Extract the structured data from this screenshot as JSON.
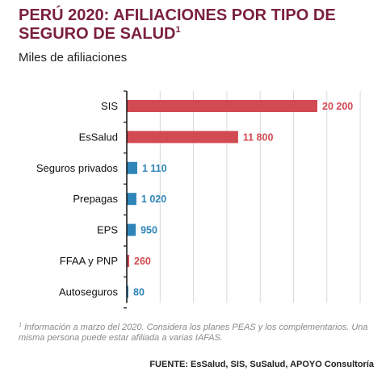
{
  "header": {
    "title": "PERÚ 2020: AFILIACIONES POR TIPO DE SEGURO DE SALUD",
    "title_note_marker": "1",
    "subtitle": "Miles de afiliaciones"
  },
  "chart_data": {
    "type": "bar",
    "orientation": "horizontal",
    "title": "PERÚ 2020: AFILIACIONES POR TIPO DE SEGURO DE SALUD",
    "subtitle": "Miles de afiliaciones",
    "categories": [
      "SIS",
      "EsSalud",
      "Seguros privados",
      "Prepagas",
      "EPS",
      "FFAA y PNP",
      "Autoseguros"
    ],
    "values": [
      20200,
      11800,
      1110,
      1020,
      950,
      260,
      80
    ],
    "value_labels": [
      "20 200",
      "11 800",
      "1 110",
      "1 020",
      "950",
      "260",
      "80"
    ],
    "bar_colors": [
      "#d24a52",
      "#d24a52",
      "#2f85b8",
      "#2f85b8",
      "#2f85b8",
      "#d24a52",
      "#2f85b8"
    ],
    "xlim": [
      0,
      20200
    ],
    "grid": true,
    "legend": "none"
  },
  "footer": {
    "note_marker": "1",
    "note": "Información a marzo del 2020. Considera los planes PEAS y los complementarios. Una misma persona puede estar afiliada a varias IAFAS.",
    "source": "FUENTE: EsSalud, SIS, SuSalud, APOYO Consultoría"
  }
}
